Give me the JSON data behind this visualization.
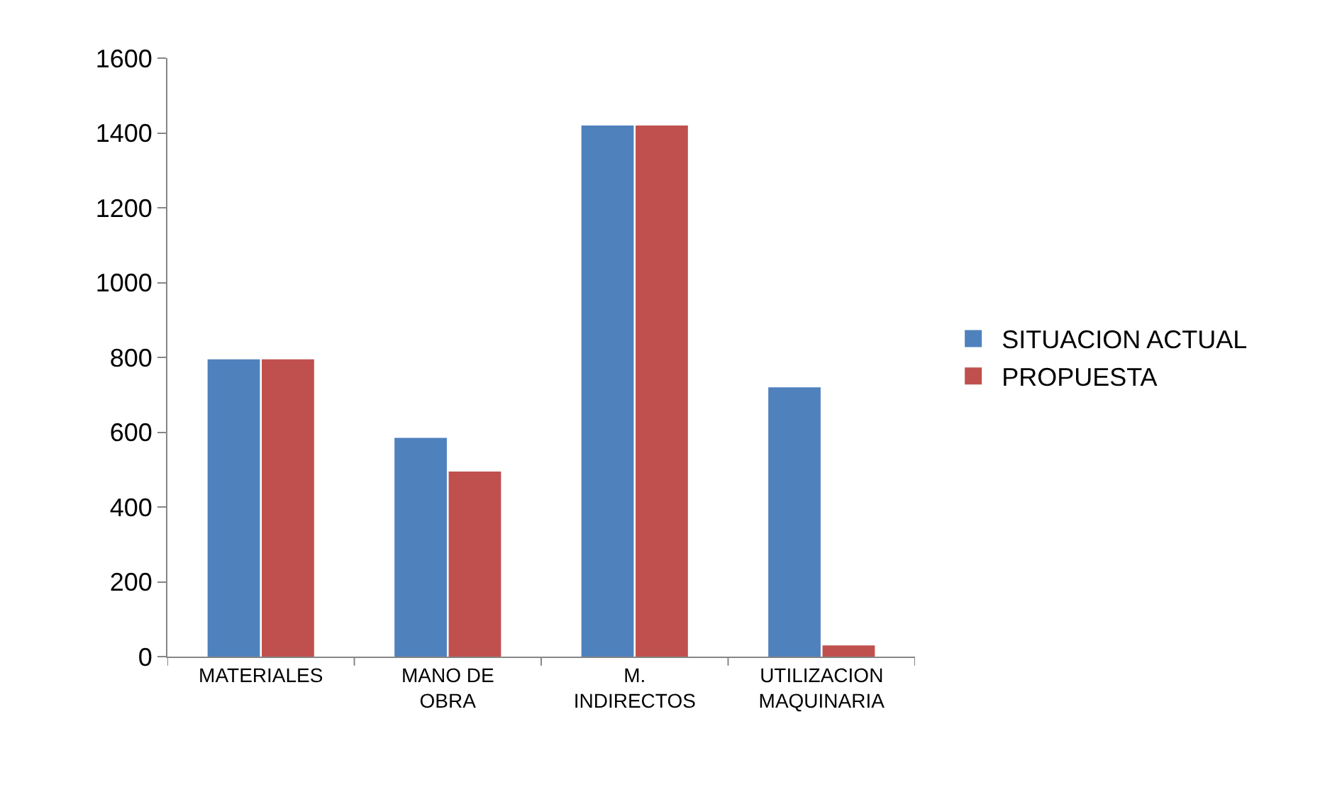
{
  "chart_data": {
    "type": "bar",
    "categories": [
      "MATERIALES",
      "MANO DE OBRA",
      "M. INDIRECTOS",
      "UTILIZACION MAQUINARIA"
    ],
    "series": [
      {
        "name": "SITUACION ACTUAL",
        "color": "#4f81bd",
        "values": [
          795,
          585,
          1420,
          720
        ]
      },
      {
        "name": "PROPUESTA",
        "color": "#c0504d",
        "values": [
          795,
          495,
          1420,
          30
        ]
      }
    ],
    "ylim": [
      0,
      1600
    ],
    "yticks": [
      0,
      200,
      400,
      600,
      800,
      1000,
      1200,
      1400,
      1600
    ],
    "grid": false,
    "legend": "right"
  }
}
